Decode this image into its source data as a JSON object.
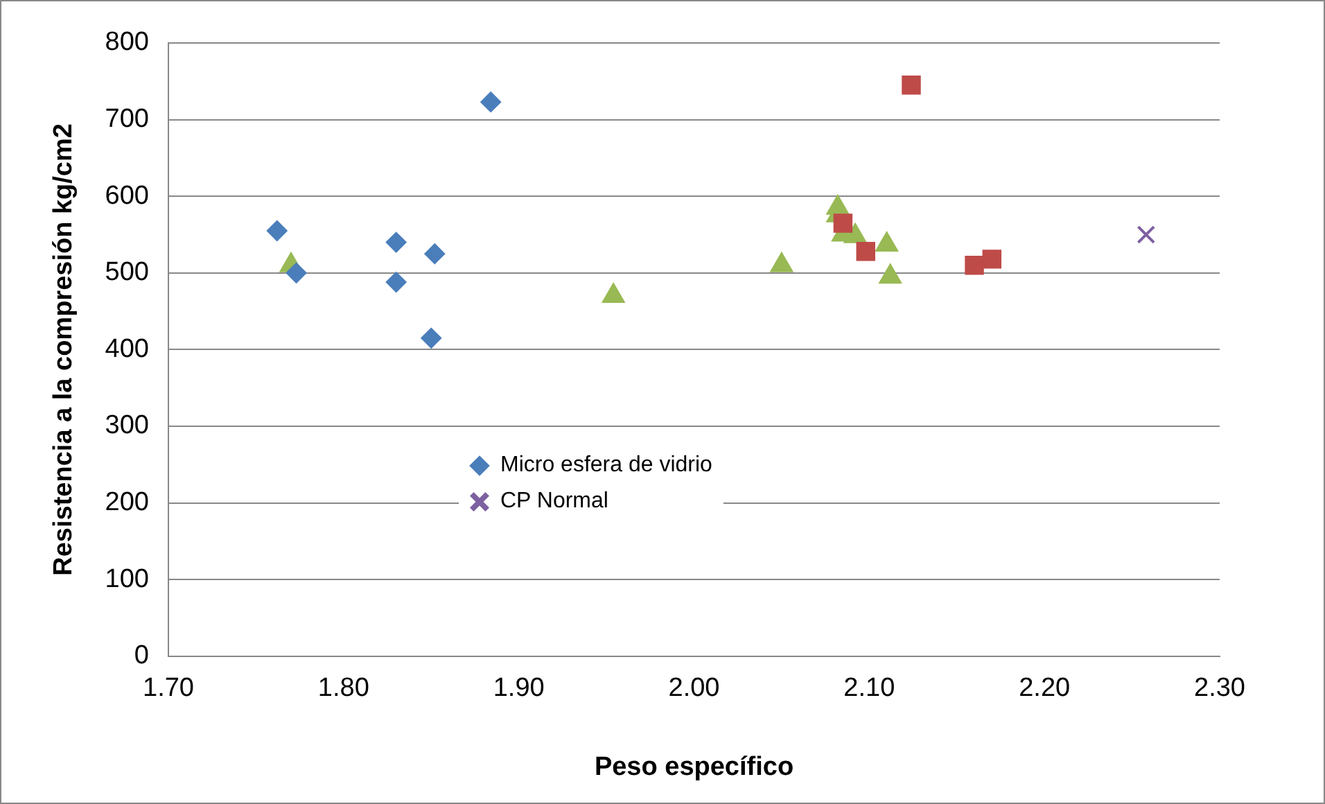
{
  "chart_data": {
    "type": "scatter",
    "xlabel": "Peso específico",
    "ylabel": "Resistencia a la compresión kg/cm2",
    "xlim": [
      1.7,
      2.3
    ],
    "xticks": [
      {
        "value": 1.7,
        "label": "1.70"
      },
      {
        "value": 1.8,
        "label": "1.80"
      },
      {
        "value": 1.9,
        "label": "1.90"
      },
      {
        "value": 2.0,
        "label": "2.00"
      },
      {
        "value": 2.1,
        "label": "2.10"
      },
      {
        "value": 2.2,
        "label": "2.20"
      },
      {
        "value": 2.3,
        "label": "2.30"
      }
    ],
    "ylim": [
      0,
      800
    ],
    "yticks": [
      0,
      100,
      200,
      300,
      400,
      500,
      600,
      700,
      800
    ],
    "grid": "y",
    "legend": "bottom",
    "series": [
      {
        "name": "Micro esfera de vidrio",
        "color": "#4a7ebb",
        "marker": "diamond",
        "x": [
          1.762,
          1.773,
          1.83,
          1.83,
          1.852,
          1.85,
          1.884
        ],
        "values": [
          555,
          500,
          540,
          488,
          525,
          415,
          723
        ]
      },
      {
        "color": "#be4b48",
        "marker": "square",
        "x": [
          2.124,
          2.085,
          2.098,
          2.16,
          2.17
        ],
        "values": [
          745,
          565,
          528,
          510,
          518
        ]
      },
      {
        "color": "#98b954",
        "marker": "triangle",
        "x": [
          1.77,
          1.954,
          2.05,
          2.082,
          2.082,
          2.085,
          2.092,
          2.11,
          2.112
        ],
        "values": [
          510,
          470,
          510,
          585,
          575,
          550,
          548,
          537,
          495
        ]
      },
      {
        "name": "CP Normal",
        "color": "#7d60a0",
        "marker": "cross",
        "x": [
          2.258
        ],
        "values": [
          550
        ]
      }
    ]
  }
}
